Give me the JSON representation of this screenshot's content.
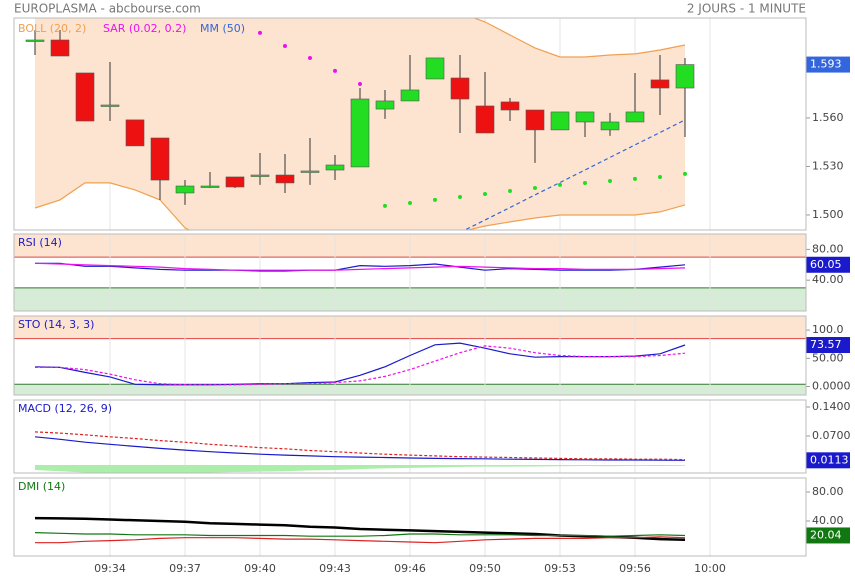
{
  "header": {
    "title": "EUROPLASMA - abcbourse.com",
    "period": "2 JOURS - 1 MINUTE"
  },
  "chart_data": [
    {
      "type": "candlestick",
      "xlim": [
        -0.84,
        30.84
      ],
      "xticks": [
        {
          "value": 3,
          "label": "09:34"
        },
        {
          "value": 6,
          "label": "09:37"
        },
        {
          "value": 9,
          "label": "09:40"
        },
        {
          "value": 12,
          "label": "09:43"
        },
        {
          "value": 15,
          "label": "09:46"
        },
        {
          "value": 18,
          "label": "09:50"
        },
        {
          "value": 21,
          "label": "09:53"
        },
        {
          "value": 24,
          "label": "09:56"
        },
        {
          "value": 27,
          "label": "10:00"
        }
      ],
      "ylim": [
        1.4907,
        1.6218
      ],
      "yticks": [
        {
          "value": 1.5,
          "label": "1.500"
        },
        {
          "value": 1.53,
          "label": "1.530"
        },
        {
          "value": 1.56,
          "label": "1.560"
        }
      ],
      "up_color": "#22dd22",
      "down_color": "#ee1111",
      "badge_color": "#3366dd",
      "open": [
        1.6082,
        1.6082,
        1.5878,
        1.568,
        1.5588,
        1.5476,
        1.5136,
        1.5179,
        1.5235,
        1.5247,
        1.5247,
        1.5272,
        1.5278,
        1.5297,
        1.5655,
        1.5705,
        1.5841,
        1.5847,
        1.5674,
        1.5699,
        1.5649,
        1.5526,
        1.5575,
        1.5526,
        1.5575,
        1.5835,
        1.5785
      ],
      "high": [
        1.6144,
        1.6144,
        1.5878,
        1.5946,
        1.5588,
        1.5476,
        1.5216,
        1.5266,
        1.5235,
        1.5383,
        1.5377,
        1.5476,
        1.5371,
        1.5785,
        1.5773,
        1.5989,
        1.5971,
        1.5989,
        1.5884,
        1.5723,
        1.5649,
        1.5637,
        1.5637,
        1.5631,
        1.5878,
        1.5989,
        1.5971
      ],
      "low": [
        1.5989,
        1.5983,
        1.5581,
        1.5581,
        1.5427,
        1.5093,
        1.5062,
        1.5167,
        1.5167,
        1.5186,
        1.5136,
        1.5186,
        1.5216,
        1.5297,
        1.5594,
        1.5705,
        1.5841,
        1.5507,
        1.5507,
        1.5581,
        1.5322,
        1.5526,
        1.5482,
        1.5489,
        1.5575,
        1.5618,
        1.5482
      ],
      "close": [
        1.6082,
        1.5983,
        1.5581,
        1.568,
        1.5427,
        1.5216,
        1.5179,
        1.5179,
        1.5173,
        1.5247,
        1.5198,
        1.5272,
        1.5309,
        1.5717,
        1.5705,
        1.5773,
        1.5971,
        1.5717,
        1.5507,
        1.5649,
        1.5526,
        1.5637,
        1.5637,
        1.5575,
        1.5637,
        1.5785,
        1.593
      ],
      "bollinger": {
        "name": "BOLL (20, 2)",
        "color": "#f0a050",
        "fill": "#fde4d0",
        "upper": [
          1.63,
          1.63,
          1.629,
          1.628,
          1.628,
          1.629,
          1.63,
          1.631,
          1.631,
          1.63,
          1.63,
          1.629,
          1.629,
          1.63,
          1.631,
          1.63,
          1.628,
          1.625,
          1.6194,
          1.6113,
          1.6033,
          1.5977,
          1.5977,
          1.5989,
          1.5996,
          1.602,
          1.6051
        ],
        "lower": [
          1.5043,
          1.5093,
          1.5198,
          1.5198,
          1.5155,
          1.5093,
          1.492,
          1.4845,
          1.4814,
          1.4784,
          1.4784,
          1.4753,
          1.4753,
          1.4734,
          1.4753,
          1.4784,
          1.4845,
          1.4895,
          1.4932,
          1.4957,
          1.4981,
          1.5,
          1.5,
          1.5,
          1.5,
          1.5019,
          1.5062
        ]
      },
      "sar": {
        "name": "SAR (0.02, 0.2)",
        "color": "#ee11ee",
        "color_below": "#22dd22",
        "values": [
          null,
          null,
          null,
          null,
          null,
          null,
          null,
          null,
          null,
          1.6126,
          1.6045,
          1.5971,
          1.5891,
          1.581,
          1.5056,
          1.5074,
          1.5093,
          1.5111,
          1.513,
          1.5148,
          1.5167,
          1.5186,
          1.5198,
          1.521,
          1.5223,
          1.5235,
          1.5254
        ]
      },
      "mm": {
        "name": "MM (50)",
        "color": "#3366dd",
        "values": [
          null,
          null,
          null,
          null,
          null,
          null,
          null,
          null,
          null,
          null,
          null,
          null,
          null,
          null,
          null,
          null,
          null,
          1.4892,
          1.4969,
          1.5046,
          1.5124,
          1.5201,
          1.5278,
          1.5356,
          1.5433,
          1.551,
          1.5588
        ]
      }
    },
    {
      "type": "line",
      "title": "RSI (14)",
      "title_color": "#1a1acc",
      "ylim": [
        0,
        100
      ],
      "yticks": [
        {
          "value": 80,
          "label": "80.00"
        },
        {
          "value": 40,
          "label": "40.00"
        }
      ],
      "zones": {
        "upper": 70,
        "lower": 30
      },
      "series": [
        {
          "color": "#1a1acc",
          "badge": true,
          "values": [
            62,
            62,
            58,
            58,
            56,
            54,
            53,
            53,
            53,
            52,
            52,
            53,
            53,
            59,
            58,
            59,
            61,
            57,
            53,
            55,
            54,
            53,
            53,
            53,
            54,
            57,
            60.05
          ]
        },
        {
          "color": "#ee11ee",
          "values": [
            62,
            61,
            60,
            59,
            58,
            57,
            55,
            54,
            53,
            53,
            53,
            53,
            53,
            54,
            55,
            56,
            57,
            58,
            57,
            56,
            55,
            55,
            54,
            54,
            54,
            55,
            56
          ]
        }
      ]
    },
    {
      "type": "line",
      "title": "STO (14, 3, 3)",
      "title_color": "#1a1acc",
      "ylim": [
        -15,
        125
      ],
      "yticks": [
        {
          "value": 100,
          "label": "100.0"
        },
        {
          "value": 50,
          "label": "50.00"
        },
        {
          "value": 0,
          "label": "0.0000"
        }
      ],
      "zones": {
        "upper": 85,
        "lower": 4
      },
      "series": [
        {
          "color": "#1a1acc",
          "badge": true,
          "values": [
            35,
            34,
            25,
            17,
            4,
            3,
            3,
            3,
            4,
            5,
            5,
            7,
            8,
            20,
            35,
            55,
            74,
            77,
            68,
            58,
            52,
            53,
            53,
            53,
            54,
            58,
            73.57
          ]
        },
        {
          "color": "#ee11ee",
          "dash": true,
          "values": [
            34,
            34,
            30,
            22,
            12,
            5,
            3,
            3,
            3,
            4,
            5,
            5,
            7,
            10,
            18,
            30,
            45,
            60,
            72,
            68,
            60,
            55,
            53,
            53,
            53,
            55,
            59
          ]
        }
      ]
    },
    {
      "type": "line",
      "title": "MACD (12, 26, 9)",
      "title_color": "#1a1acc",
      "ylim": [
        -0.0193,
        0.1569
      ],
      "yticks": [
        {
          "value": 0.14,
          "label": "0.1400"
        },
        {
          "value": 0.07,
          "label": "0.0700"
        }
      ],
      "histogram": {
        "color": "#aaeeaa",
        "values": [
          -0.012,
          -0.015,
          -0.018,
          -0.018,
          -0.019,
          -0.019,
          -0.019,
          -0.018,
          -0.017,
          -0.016,
          -0.015,
          -0.013,
          -0.012,
          -0.01,
          -0.008,
          -0.007,
          -0.006,
          -0.0045,
          -0.004,
          -0.004,
          -0.0035,
          -0.003,
          -0.0025,
          -0.003,
          -0.002,
          -0.0025,
          -0.0017
        ]
      },
      "series": [
        {
          "color": "#1a1acc",
          "badge": true,
          "values": [
            0.068,
            0.062,
            0.055,
            0.05,
            0.045,
            0.04,
            0.036,
            0.032,
            0.029,
            0.026,
            0.024,
            0.022,
            0.02,
            0.019,
            0.018,
            0.017,
            0.016,
            0.0155,
            0.015,
            0.014,
            0.0135,
            0.013,
            0.0125,
            0.012,
            0.012,
            0.0115,
            0.0113
          ]
        },
        {
          "color": "#dd2222",
          "dash": true,
          "values": [
            0.08,
            0.077,
            0.073,
            0.068,
            0.064,
            0.059,
            0.055,
            0.05,
            0.046,
            0.042,
            0.039,
            0.035,
            0.032,
            0.029,
            0.026,
            0.024,
            0.022,
            0.02,
            0.019,
            0.018,
            0.017,
            0.016,
            0.015,
            0.015,
            0.014,
            0.014,
            0.013
          ]
        }
      ]
    },
    {
      "type": "line",
      "title": "DMI (14)",
      "title_color": "#117711",
      "ylim": [
        -8.3,
        99.3
      ],
      "yticks": [
        {
          "value": 80,
          "label": "80.00"
        },
        {
          "value": 40,
          "label": "40.00"
        }
      ],
      "series": [
        {
          "color": "#000000",
          "width": 2.5,
          "values": [
            44,
            43.5,
            43,
            42,
            41,
            40,
            39,
            37,
            36,
            35,
            34,
            32,
            31,
            29,
            28,
            27,
            26,
            25,
            24,
            23,
            22,
            20,
            19,
            18,
            17,
            15,
            14
          ]
        },
        {
          "color": "#117711",
          "badge": true,
          "values": [
            24,
            23,
            22,
            22,
            21,
            21,
            21,
            20,
            20,
            20,
            20,
            19,
            19,
            19,
            20,
            22,
            22,
            21,
            21,
            21,
            20,
            20,
            20,
            19,
            20,
            21,
            20.04
          ]
        },
        {
          "color": "#dd2222",
          "values": [
            10,
            10,
            12,
            13,
            14,
            16,
            17,
            17,
            17,
            16,
            15,
            15,
            14,
            13,
            12,
            11,
            10,
            12,
            14,
            15,
            16,
            16,
            16,
            17,
            17,
            18,
            17
          ]
        }
      ]
    }
  ]
}
